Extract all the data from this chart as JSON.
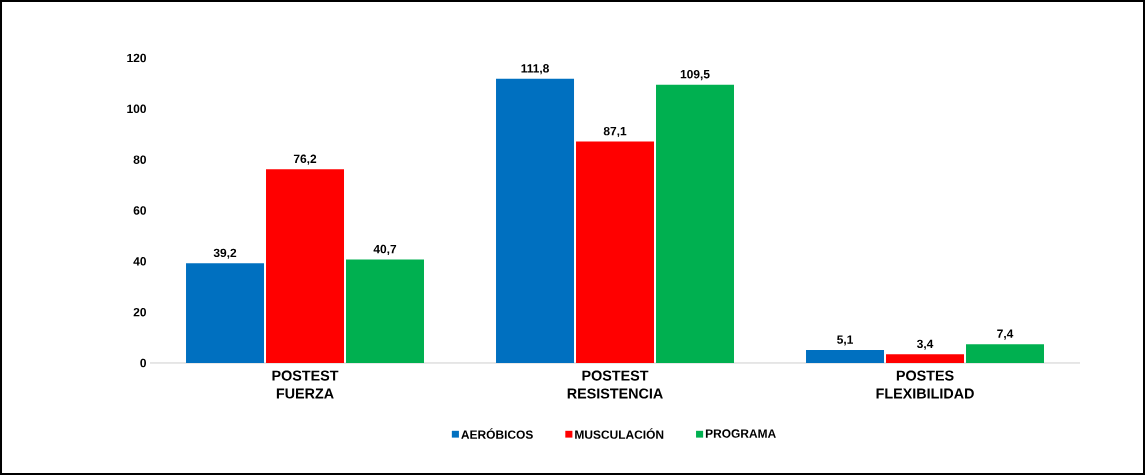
{
  "chart_data": {
    "type": "bar",
    "categories": [
      "POSTEST FUERZA",
      "POSTEST RESISTENCIA",
      "POSTES FLEXIBILIDAD"
    ],
    "series": [
      {
        "name": "AERÓBICOS",
        "color": "#0070c0",
        "values": [
          39.2,
          111.8,
          5.1
        ],
        "value_labels": [
          "39,2",
          "111,8",
          "5,1"
        ]
      },
      {
        "name": "MUSCULACIÓN",
        "color": "#ff0000",
        "values": [
          76.2,
          87.1,
          3.4
        ],
        "value_labels": [
          "76,2",
          "87,1",
          "3,4"
        ]
      },
      {
        "name": "PROGRAMA",
        "color": "#00b050",
        "values": [
          40.7,
          109.5,
          7.4
        ],
        "value_labels": [
          "40,7",
          "109,5",
          "7,4"
        ]
      }
    ],
    "ylim": [
      0,
      120
    ],
    "yticks": [
      0,
      20,
      40,
      60,
      80,
      100,
      120
    ],
    "legend": "bottom"
  }
}
